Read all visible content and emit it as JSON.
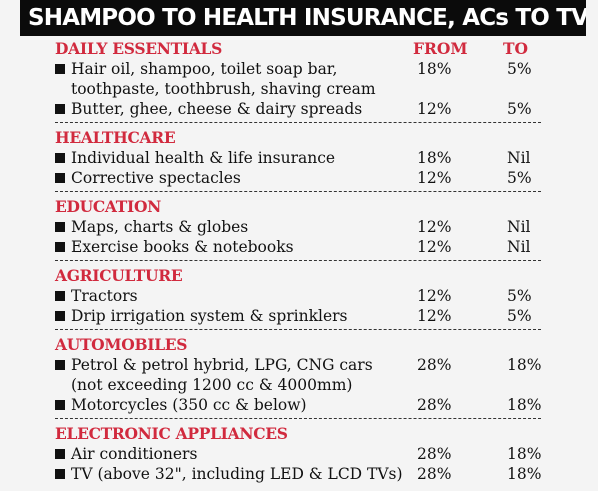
{
  "title": "SHAMPOO TO HEALTH INSURANCE, ACs TO TVs",
  "headers": {
    "from": "FROM",
    "to": "TO"
  },
  "sections": [
    {
      "name": "DAILY ESSENTIALS",
      "items": [
        {
          "lines": [
            "Hair oil, shampoo, toilet soap bar,",
            "toothpaste, toothbrush, shaving cream"
          ],
          "from": "18%",
          "to": "5%"
        },
        {
          "lines": [
            "Butter, ghee, cheese & dairy spreads"
          ],
          "from": "12%",
          "to": "5%"
        }
      ]
    },
    {
      "name": "HEALTHCARE",
      "items": [
        {
          "lines": [
            "Individual health & life insurance"
          ],
          "from": "18%",
          "to": "Nil"
        },
        {
          "lines": [
            "Corrective spectacles"
          ],
          "from": "12%",
          "to": "5%"
        }
      ]
    },
    {
      "name": "EDUCATION",
      "items": [
        {
          "lines": [
            "Maps, charts & globes"
          ],
          "from": "12%",
          "to": "Nil"
        },
        {
          "lines": [
            "Exercise books & notebooks"
          ],
          "from": "12%",
          "to": "Nil"
        }
      ]
    },
    {
      "name": "AGRICULTURE",
      "items": [
        {
          "lines": [
            "Tractors"
          ],
          "from": "12%",
          "to": "5%"
        },
        {
          "lines": [
            "Drip irrigation system & sprinklers"
          ],
          "from": "12%",
          "to": "5%"
        }
      ]
    },
    {
      "name": "AUTOMOBILES",
      "items": [
        {
          "lines": [
            "Petrol & petrol hybrid, LPG, CNG cars",
            "(not exceeding 1200 cc & 4000mm)"
          ],
          "from": "28%",
          "to": "18%"
        },
        {
          "lines": [
            "Motorcycles (350 cc & below)"
          ],
          "from": "28%",
          "to": "18%"
        }
      ]
    },
    {
      "name": "ELECTRONIC APPLIANCES",
      "items": [
        {
          "lines": [
            "Air conditioners"
          ],
          "from": "28%",
          "to": "18%"
        },
        {
          "lines": [
            "TV (above 32\", including LED & LCD TVs)"
          ],
          "from": "28%",
          "to": "18%"
        }
      ]
    }
  ]
}
